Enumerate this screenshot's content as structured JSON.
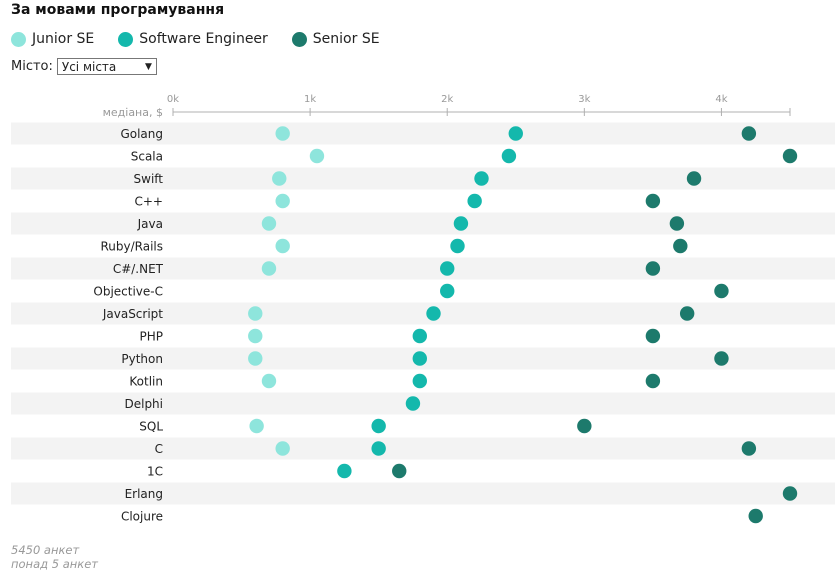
{
  "title": "За мовами програмування",
  "legend": [
    {
      "label": "Junior SE",
      "color": "#8ee5dc"
    },
    {
      "label": "Software Engineer",
      "color": "#14b8ac"
    },
    {
      "label": "Senior SE",
      "color": "#1d7a6c"
    }
  ],
  "city": {
    "label": "Місто:",
    "value": "Усі міста",
    "arrow": "▼"
  },
  "chart_data": {
    "type": "scatter",
    "ylabel": "медіана, $",
    "xlim": [
      0,
      4500
    ],
    "ticks": [
      {
        "value": 0,
        "label": "0k"
      },
      {
        "value": 1000,
        "label": "1k"
      },
      {
        "value": 2000,
        "label": "2k"
      },
      {
        "value": 3000,
        "label": "3k"
      },
      {
        "value": 4000,
        "label": "4k"
      }
    ],
    "categories": [
      "Golang",
      "Scala",
      "Swift",
      "C++",
      "Java",
      "Ruby/Rails",
      "C#/.NET",
      "Objective-C",
      "JavaScript",
      "PHP",
      "Python",
      "Kotlin",
      "Delphi",
      "SQL",
      "C",
      "1C",
      "Erlang",
      "Clojure"
    ],
    "series": [
      {
        "name": "Junior SE",
        "color": "#8ee5dc",
        "values": [
          800,
          1050,
          775,
          800,
          700,
          800,
          700,
          null,
          600,
          600,
          600,
          700,
          null,
          610,
          800,
          null,
          null,
          null
        ]
      },
      {
        "name": "Software Engineer",
        "color": "#14b8ac",
        "values": [
          2500,
          2450,
          2250,
          2200,
          2100,
          2075,
          2000,
          2000,
          1900,
          1800,
          1800,
          1800,
          1750,
          1500,
          1500,
          1250,
          null,
          null
        ]
      },
      {
        "name": "Senior SE",
        "color": "#1d7a6c",
        "values": [
          4200,
          4500,
          3800,
          3500,
          3675,
          3700,
          3500,
          4000,
          3750,
          3500,
          4000,
          3500,
          null,
          3000,
          4200,
          1650,
          4500,
          4250
        ]
      }
    ]
  },
  "footer": {
    "responses": "5450 анкет",
    "note": "понад 5 анкет"
  }
}
